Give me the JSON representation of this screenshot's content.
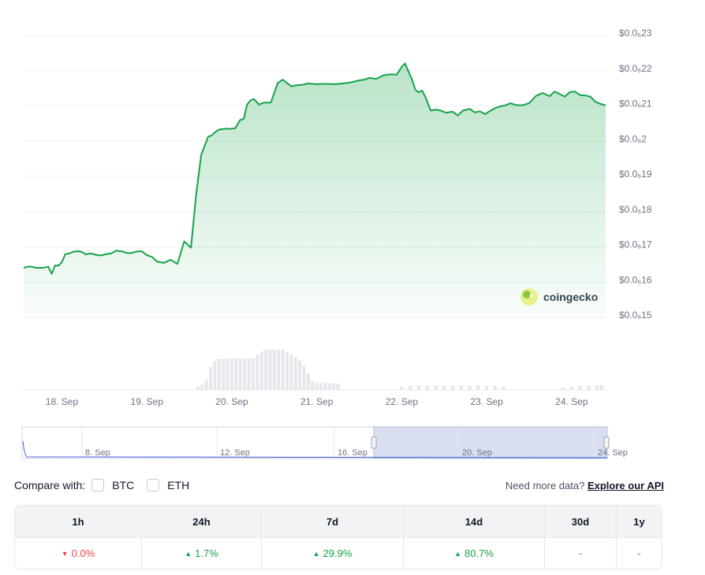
{
  "chart_data": {
    "type": "area",
    "price_line_color": "#16a34a",
    "area_fill_color": "#16a34a",
    "volume_color": "#e5e7eb",
    "y_ticks": [
      "$0.0₆23",
      "$0.0₆22",
      "$0.0₆21",
      "$0.0₆2",
      "$0.0₆19",
      "$0.0₆18",
      "$0.0₆17",
      "$0.0₆16",
      "$0.0₆15"
    ],
    "ylim": [
      1.5e-07,
      2.3e-07
    ],
    "x_ticks": [
      "18. Sep",
      "19. Sep",
      "20. Sep",
      "21. Sep",
      "22. Sep",
      "23. Sep",
      "24. Sep"
    ],
    "xlim": [
      17.55,
      24.4
    ],
    "grid": true,
    "watermark": "coingecko",
    "x": [
      17.55,
      17.62,
      17.7,
      17.78,
      17.84,
      17.88,
      17.92,
      17.96,
      18.0,
      18.04,
      18.09,
      18.14,
      18.2,
      18.24,
      18.28,
      18.34,
      18.4,
      18.46,
      18.52,
      18.58,
      18.64,
      18.68,
      18.72,
      18.76,
      18.82,
      18.88,
      18.94,
      19.0,
      19.06,
      19.12,
      19.2,
      19.28,
      19.36,
      19.44,
      19.52,
      19.58,
      19.64,
      19.7,
      19.72,
      19.76,
      19.8,
      19.82,
      19.86,
      19.9,
      19.94,
      19.98,
      20.04,
      20.1,
      20.14,
      20.18,
      20.22,
      20.26,
      20.32,
      20.38,
      20.46,
      20.54,
      20.6,
      20.64,
      20.7,
      20.76,
      20.82,
      20.9,
      21.0,
      21.1,
      21.2,
      21.3,
      21.4,
      21.5,
      21.56,
      21.62,
      21.7,
      21.78,
      21.86,
      21.94,
      22.0,
      22.04,
      22.08,
      22.12,
      22.16,
      22.2,
      22.24,
      22.28,
      22.34,
      22.4,
      22.46,
      22.52,
      22.6,
      22.66,
      22.72,
      22.8,
      22.86,
      22.92,
      22.98,
      23.04,
      23.1,
      23.16,
      23.22,
      23.28,
      23.34,
      23.42,
      23.5,
      23.58,
      23.66,
      23.74,
      23.8,
      23.86,
      23.92,
      23.98,
      24.04,
      24.1,
      24.16,
      24.22,
      24.28,
      24.34,
      24.4
    ],
    "values": [
      1.634e-07,
      1.638e-07,
      1.634e-07,
      1.634e-07,
      1.637e-07,
      1.617e-07,
      1.641e-07,
      1.64e-07,
      1.65e-07,
      1.673e-07,
      1.675e-07,
      1.68e-07,
      1.681e-07,
      1.679e-07,
      1.672e-07,
      1.675e-07,
      1.671e-07,
      1.669e-07,
      1.673e-07,
      1.675e-07,
      1.683e-07,
      1.681e-07,
      1.68e-07,
      1.676e-07,
      1.676e-07,
      1.68e-07,
      1.681e-07,
      1.67e-07,
      1.665e-07,
      1.652e-07,
      1.648e-07,
      1.657e-07,
      1.645e-07,
      1.709e-07,
      1.691e-07,
      1.842e-07,
      1.955e-07,
      1.992e-07,
      2.006e-07,
      2.009e-07,
      2.018e-07,
      2.022e-07,
      2.027e-07,
      2.028e-07,
      2.029e-07,
      2.028e-07,
      2.03e-07,
      2.054e-07,
      2.056e-07,
      2.097e-07,
      2.109e-07,
      2.113e-07,
      2.097e-07,
      2.103e-07,
      2.103e-07,
      2.158e-07,
      2.168e-07,
      2.16e-07,
      2.149e-07,
      2.152e-07,
      2.153e-07,
      2.157e-07,
      2.155e-07,
      2.156e-07,
      2.155e-07,
      2.157e-07,
      2.16e-07,
      2.166e-07,
      2.168e-07,
      2.173e-07,
      2.17e-07,
      2.18e-07,
      2.183e-07,
      2.182e-07,
      2.204e-07,
      2.214e-07,
      2.191e-07,
      2.169e-07,
      2.139e-07,
      2.132e-07,
      2.137e-07,
      2.118e-07,
      2.08e-07,
      2.083e-07,
      2.08e-07,
      2.074e-07,
      2.077e-07,
      2.066e-07,
      2.08e-07,
      2.085e-07,
      2.075e-07,
      2.078e-07,
      2.07e-07,
      2.079e-07,
      2.087e-07,
      2.092e-07,
      2.095e-07,
      2.101e-07,
      2.096e-07,
      2.095e-07,
      2.101e-07,
      2.122e-07,
      2.13e-07,
      2.121e-07,
      2.134e-07,
      2.127e-07,
      2.12e-07,
      2.133e-07,
      2.134e-07,
      2.124e-07,
      2.123e-07,
      2.12e-07,
      2.105e-07,
      2.099e-07,
      2.095e-07
    ],
    "volume": {
      "x": [
        19.6,
        19.65,
        19.7,
        19.75,
        19.8,
        19.85,
        19.9,
        19.95,
        20.0,
        20.05,
        20.1,
        20.15,
        20.2,
        20.25,
        20.3,
        20.35,
        20.4,
        20.45,
        20.5,
        20.55,
        20.6,
        20.65,
        20.7,
        20.75,
        20.8,
        20.85,
        20.9,
        20.95,
        21.0,
        21.05,
        21.1,
        21.15,
        21.2,
        21.25,
        22.0,
        22.1,
        22.2,
        22.3,
        22.4,
        22.5,
        22.6,
        22.7,
        22.8,
        22.9,
        23.0,
        23.1,
        23.2,
        23.9,
        24.0,
        24.1,
        24.2,
        24.3,
        24.35
      ],
      "values": [
        0.08,
        0.12,
        0.25,
        0.55,
        0.7,
        0.75,
        0.76,
        0.77,
        0.77,
        0.78,
        0.77,
        0.76,
        0.77,
        0.78,
        0.86,
        0.94,
        0.98,
        0.99,
        0.99,
        0.99,
        0.98,
        0.92,
        0.86,
        0.8,
        0.72,
        0.6,
        0.4,
        0.22,
        0.18,
        0.17,
        0.16,
        0.16,
        0.16,
        0.15,
        0.08,
        0.1,
        0.11,
        0.1,
        0.11,
        0.1,
        0.1,
        0.11,
        0.1,
        0.11,
        0.1,
        0.11,
        0.08,
        0.06,
        0.08,
        0.1,
        0.1,
        0.11,
        0.12
      ]
    },
    "navigator": {
      "x_ticks": [
        "8. Sep",
        "12. Sep",
        "16. Sep",
        "20. Sep",
        "24. Sep"
      ]
    }
  },
  "compare": {
    "label": "Compare with:",
    "options": [
      "BTC",
      "ETH"
    ],
    "api_prompt": "Need more data?",
    "api_link": "Explore our API"
  },
  "performance": {
    "headers": [
      "1h",
      "24h",
      "7d",
      "14d",
      "30d",
      "1y"
    ],
    "values": [
      {
        "text": "0.0%",
        "dir": "down"
      },
      {
        "text": "1.7%",
        "dir": "up"
      },
      {
        "text": "29.9%",
        "dir": "up"
      },
      {
        "text": "80.7%",
        "dir": "up"
      },
      {
        "text": "-",
        "dir": "none"
      },
      {
        "text": "-",
        "dir": "none"
      }
    ]
  }
}
